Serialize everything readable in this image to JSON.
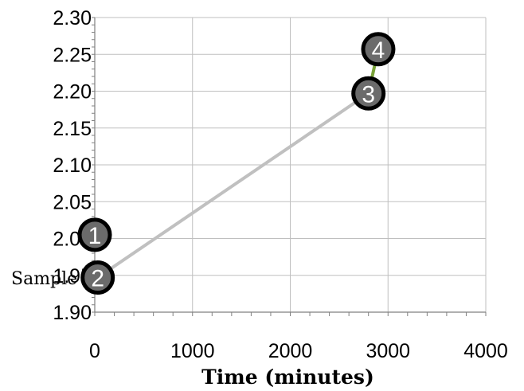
{
  "chart_data": {
    "type": "scatter",
    "title": "",
    "xlabel": "Time (minutes)",
    "ylabel": "",
    "side_text": "Sample",
    "xlim": [
      0,
      4000
    ],
    "ylim": [
      1.9,
      2.3
    ],
    "x_ticks": [
      "0",
      "1000",
      "2000",
      "3000",
      "4000"
    ],
    "y_ticks": [
      "1.90",
      "1.95",
      "2.00",
      "2.05",
      "2.10",
      "2.15",
      "2.20",
      "2.25",
      "2.30"
    ],
    "grid": true,
    "points": [
      {
        "label": "1",
        "x": 0,
        "y": 2.005
      },
      {
        "label": "2",
        "x": 30,
        "y": 1.947
      },
      {
        "label": "3",
        "x": 2800,
        "y": 2.197
      },
      {
        "label": "4",
        "x": 2900,
        "y": 2.257
      }
    ],
    "lines": [
      {
        "from": "2",
        "to": "3",
        "color": "#c0c0c0"
      },
      {
        "from": "3",
        "to": "4",
        "color": "#7aa33a"
      }
    ],
    "colors": {
      "marker_fill": "#6b6b6b",
      "marker_stroke": "#000000",
      "gridline": "#bfbfbf"
    }
  }
}
